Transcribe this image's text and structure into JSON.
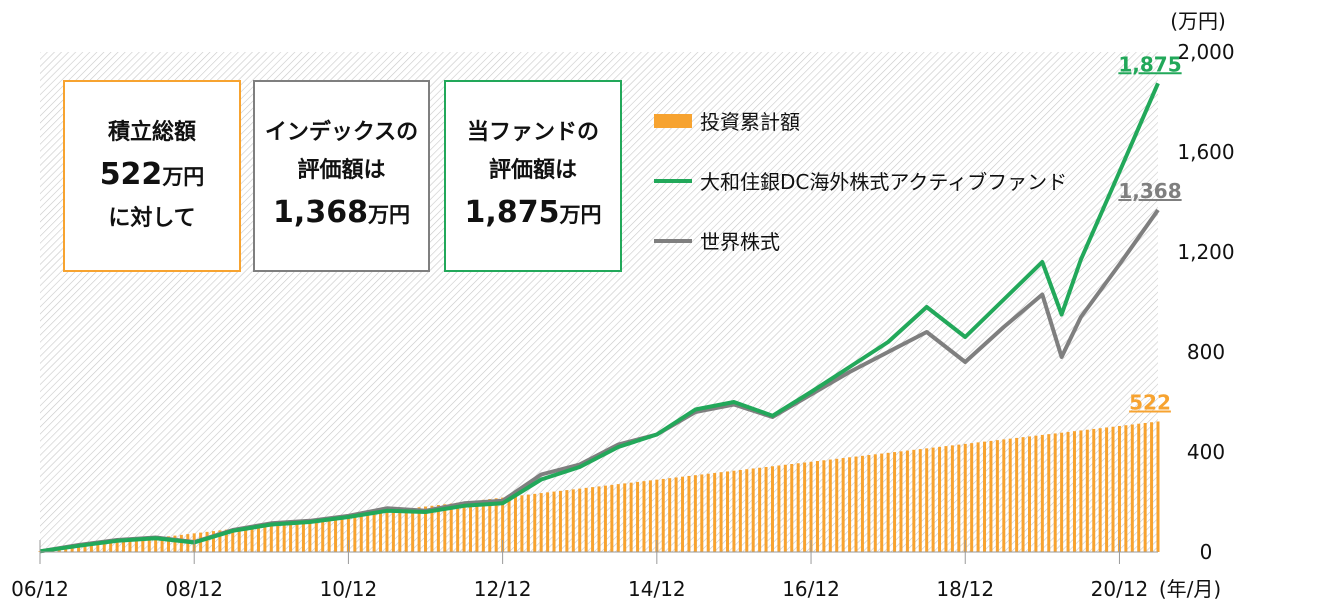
{
  "summary": {
    "total": {
      "line1": "積立総額",
      "value": "522",
      "unit": "万円",
      "line3": "に対して"
    },
    "index": {
      "line1": "インデックスの",
      "line2": "評価額は",
      "value": "1,368",
      "unit": "万円"
    },
    "fund": {
      "line1": "当ファンドの",
      "line2": "評価額は",
      "value": "1,875",
      "unit": "万円"
    }
  },
  "colors": {
    "cumulative": "#f7a330",
    "fund": "#22a85a",
    "index": "#7f7f7f"
  },
  "chart_data": {
    "type": "line",
    "yunit": "(万円)",
    "xunit": "(年/月)",
    "ylim": [
      0,
      2000
    ],
    "yticks": [
      0,
      400,
      800,
      1200,
      1600,
      2000
    ],
    "ytick_labels": [
      "0",
      "400",
      "800",
      "1,200",
      "1,600",
      "2,000"
    ],
    "xtick_labels": [
      "06/12",
      "08/12",
      "10/12",
      "12/12",
      "14/12",
      "16/12",
      "18/12",
      "20/12"
    ],
    "x_range": [
      "2006-12",
      "2021-06"
    ],
    "legend": {
      "position": "top-right"
    },
    "end_labels": {
      "fund": "1,875",
      "index": "1,368",
      "cumulative": "522"
    },
    "series": [
      {
        "key": "cumulative",
        "name": "投資累計額",
        "kind": "bar",
        "x": [
          "2006-12",
          "2021-06"
        ],
        "values": [
          3,
          522
        ]
      },
      {
        "key": "fund",
        "name": "大和住銀DC海外株式アクティブファンド",
        "kind": "line",
        "x": [
          "2006-12",
          "2007-06",
          "2007-12",
          "2008-06",
          "2008-12",
          "2009-06",
          "2009-12",
          "2010-06",
          "2010-12",
          "2011-06",
          "2011-12",
          "2012-06",
          "2012-12",
          "2013-06",
          "2013-12",
          "2014-06",
          "2014-12",
          "2015-06",
          "2015-12",
          "2016-06",
          "2016-12",
          "2017-06",
          "2017-12",
          "2018-06",
          "2018-12",
          "2019-06",
          "2019-12",
          "2020-03",
          "2020-06",
          "2020-12",
          "2021-06"
        ],
        "values": [
          3,
          25,
          45,
          55,
          38,
          85,
          110,
          120,
          140,
          165,
          160,
          185,
          195,
          290,
          340,
          420,
          470,
          570,
          600,
          545,
          640,
          740,
          840,
          980,
          860,
          1010,
          1160,
          950,
          1170,
          1520,
          1875
        ]
      },
      {
        "key": "index",
        "name": "世界株式",
        "kind": "line",
        "x": [
          "2006-12",
          "2007-06",
          "2007-12",
          "2008-06",
          "2008-12",
          "2009-06",
          "2009-12",
          "2010-06",
          "2010-12",
          "2011-06",
          "2011-12",
          "2012-06",
          "2012-12",
          "2013-06",
          "2013-12",
          "2014-06",
          "2014-12",
          "2015-06",
          "2015-12",
          "2016-06",
          "2016-12",
          "2017-06",
          "2017-12",
          "2018-06",
          "2018-12",
          "2019-06",
          "2019-12",
          "2020-03",
          "2020-06",
          "2020-12",
          "2021-06"
        ],
        "values": [
          3,
          28,
          48,
          58,
          40,
          88,
          115,
          125,
          145,
          175,
          165,
          195,
          205,
          310,
          350,
          430,
          470,
          560,
          590,
          540,
          630,
          720,
          800,
          880,
          760,
          900,
          1030,
          780,
          940,
          1150,
          1368
        ]
      }
    ]
  }
}
